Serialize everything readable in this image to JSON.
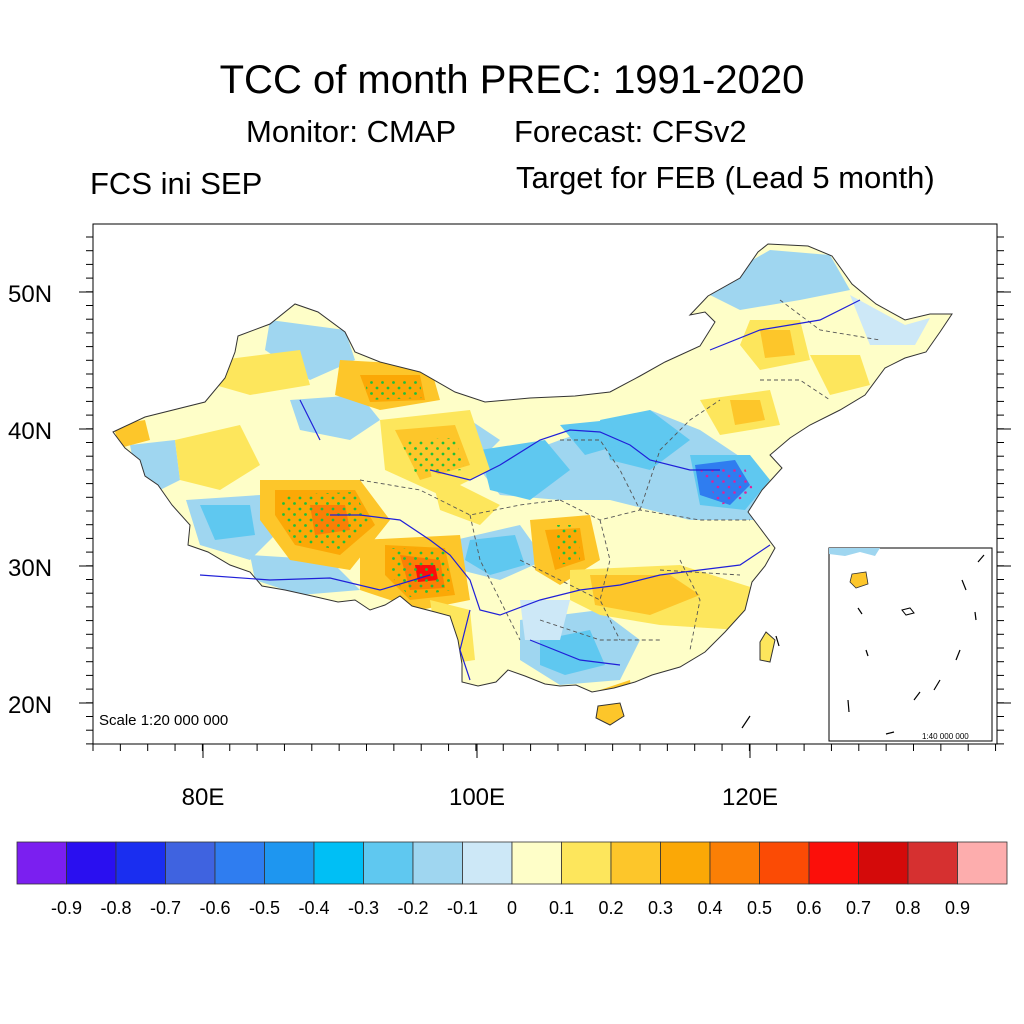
{
  "title": "TCC of month PREC: 1991-2020",
  "subtitle_monitor": "Monitor: CMAP",
  "subtitle_forecast": "Forecast: CFSv2",
  "left_label": "FCS ini SEP",
  "right_label": "Target for FEB (Lead 5 month)",
  "map": {
    "lat_labels": [
      "50N",
      "40N",
      "30N",
      "20N"
    ],
    "lon_labels": [
      "80E",
      "100E",
      "120E"
    ],
    "scale_text": "Scale 1:20 000 000",
    "inset_scale_text": "1:40 000 000"
  },
  "colorbar": {
    "colors": [
      "#7b1ff0",
      "#2a0ff0",
      "#1a2ef0",
      "#3f63e0",
      "#2f7df0",
      "#1e96f0",
      "#00bff5",
      "#5fc8f0",
      "#9fd6f0",
      "#cde8f7",
      "#fefec8",
      "#fde65c",
      "#fdc62a",
      "#fba806",
      "#fb7f05",
      "#fb4b05",
      "#fb0f0a",
      "#d40a0a",
      "#d63030",
      "#fdadad"
    ],
    "labels": [
      "-0.9",
      "-0.8",
      "-0.7",
      "-0.6",
      "-0.5",
      "-0.4",
      "-0.3",
      "-0.2",
      "-0.1",
      "0",
      "0.1",
      "0.2",
      "0.3",
      "0.4",
      "0.5",
      "0.6",
      "0.7",
      "0.8",
      "0.9"
    ]
  }
}
